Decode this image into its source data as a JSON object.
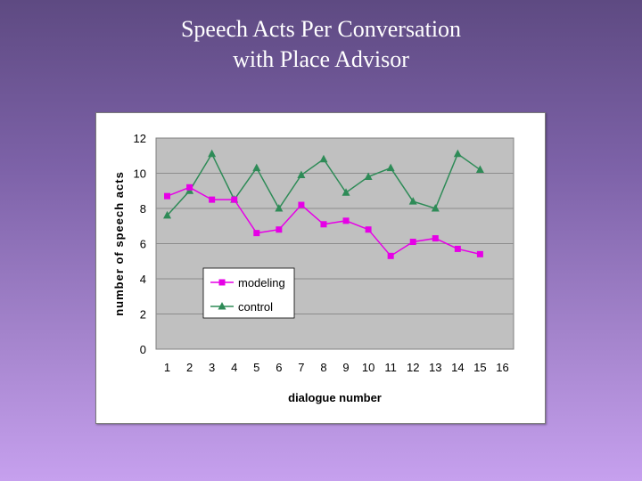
{
  "slide": {
    "title_line1": "Speech Acts Per Conversation",
    "title_line2": "with Place Advisor"
  },
  "colors": {
    "modeling": "#e600e6",
    "control": "#2e8b57",
    "plot_background": "#c0c0c0",
    "gridline": "#8c8c8c"
  },
  "chart_data": {
    "type": "line",
    "title": "",
    "xlabel": "dialogue number",
    "ylabel": "number of speech acts",
    "xlim": [
      0.5,
      16.5
    ],
    "ylim": [
      0,
      12
    ],
    "xticks": [
      "1",
      "2",
      "3",
      "4",
      "5",
      "6",
      "7",
      "8",
      "9",
      "10",
      "11",
      "12",
      "13",
      "14",
      "15",
      "16"
    ],
    "yticks": [
      "0",
      "2",
      "4",
      "6",
      "8",
      "10",
      "12"
    ],
    "grid": "horizontal",
    "legend_position": "lower-left",
    "series": [
      {
        "name": "modeling",
        "marker": "square",
        "x": [
          1,
          2,
          3,
          4,
          5,
          6,
          7,
          8,
          9,
          10,
          11,
          12,
          13,
          14,
          15
        ],
        "values": [
          8.7,
          9.2,
          8.5,
          8.5,
          6.6,
          6.8,
          8.2,
          7.1,
          7.3,
          6.8,
          5.3,
          6.1,
          6.3,
          5.7,
          5.4
        ]
      },
      {
        "name": "control",
        "marker": "triangle",
        "x": [
          1,
          2,
          3,
          4,
          5,
          6,
          7,
          8,
          9,
          10,
          11,
          12,
          13,
          14,
          15
        ],
        "values": [
          7.6,
          9.0,
          11.1,
          8.5,
          10.3,
          8.0,
          9.9,
          10.8,
          8.9,
          9.8,
          10.3,
          8.4,
          8.0,
          11.1,
          10.2
        ]
      }
    ]
  }
}
